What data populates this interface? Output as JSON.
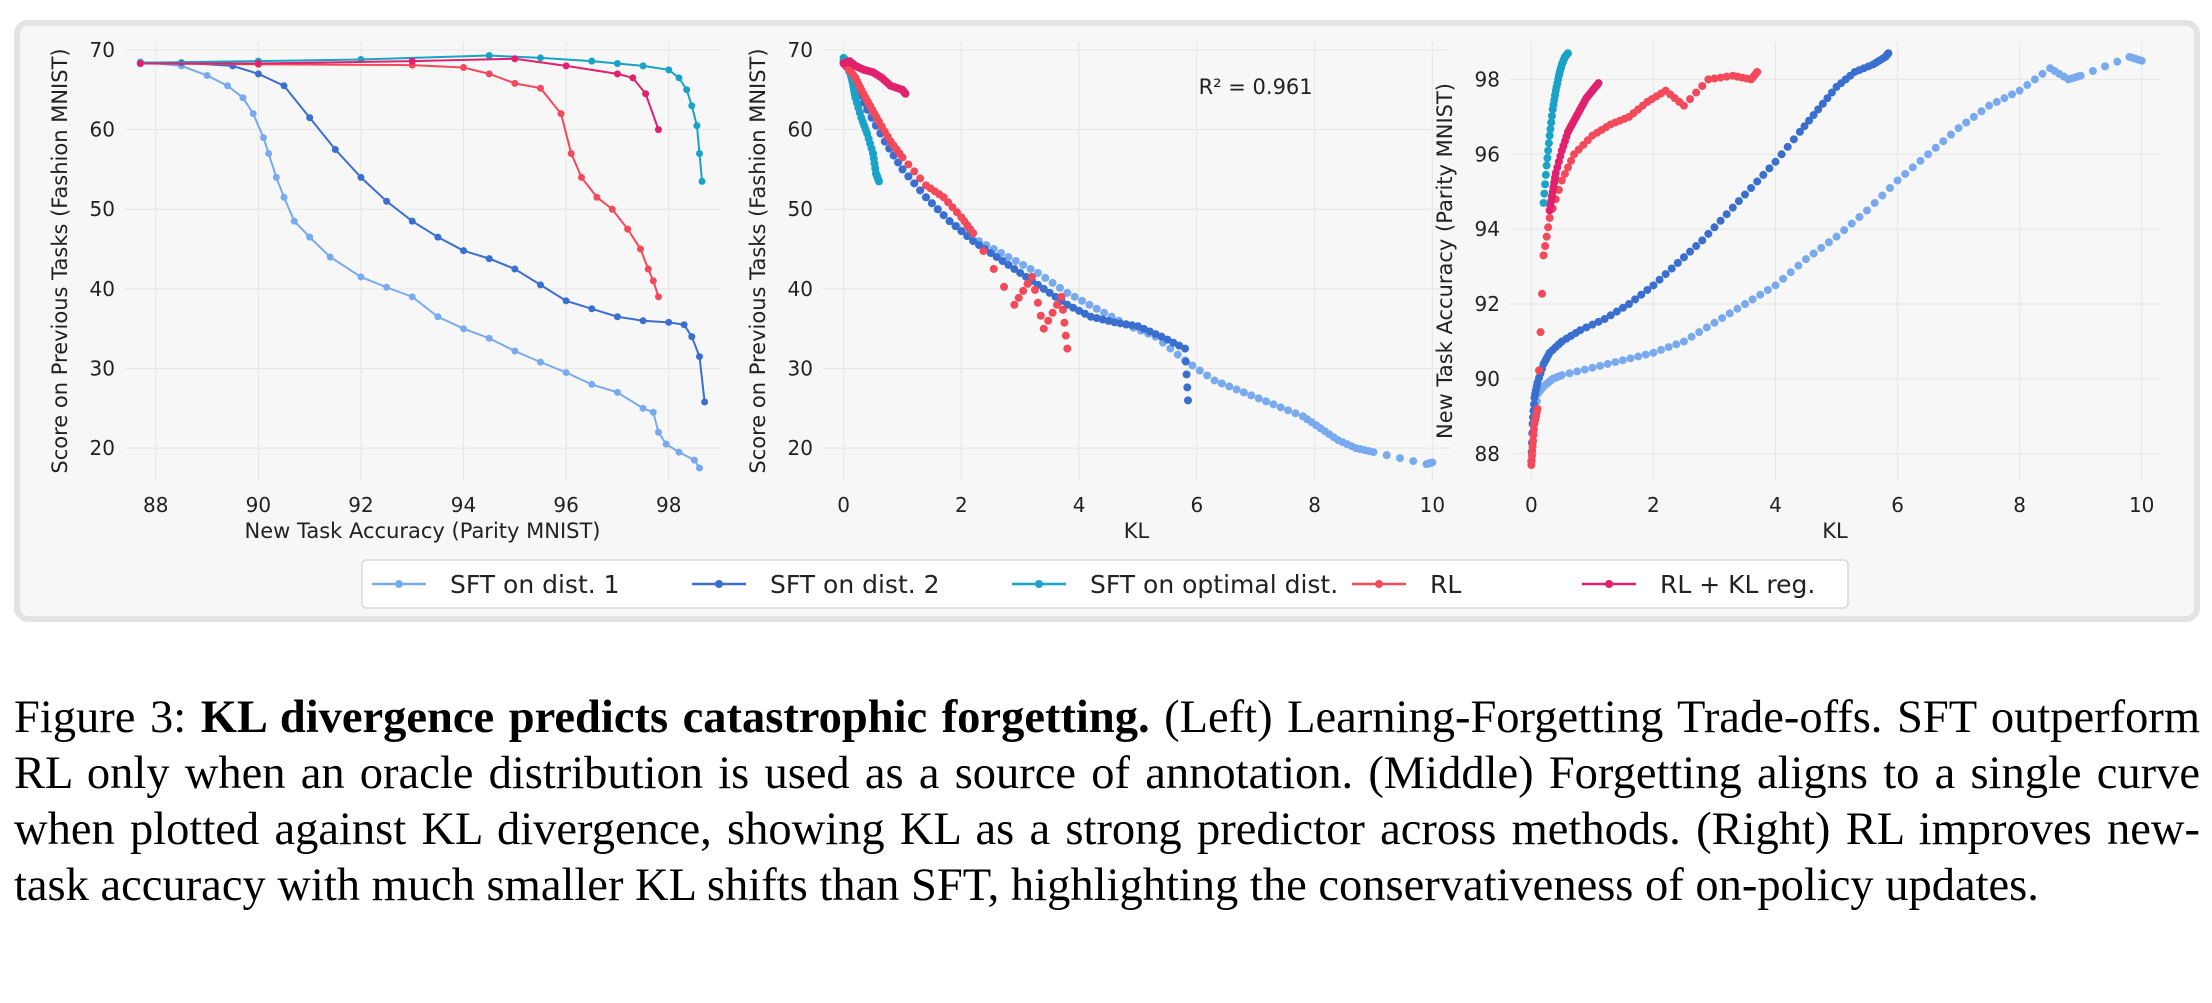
{
  "chart_data": [
    {
      "type": "line",
      "panel": "left",
      "xlabel": "New Task Accuracy (Parity MNIST)",
      "ylabel": "Score on Previous Tasks (Fashion MNIST)",
      "xlim": [
        87.4,
        99.0
      ],
      "ylim": [
        16,
        71
      ],
      "xticks": [
        88,
        90,
        92,
        94,
        96,
        98
      ],
      "yticks": [
        20,
        30,
        40,
        50,
        60,
        70
      ],
      "grid": true,
      "series": [
        {
          "name": "SFT on dist. 1",
          "color": "#7aaaee",
          "x": [
            87.7,
            88.5,
            89.0,
            89.4,
            89.7,
            89.9,
            90.1,
            90.2,
            90.35,
            90.5,
            90.7,
            91.0,
            91.4,
            92.0,
            92.5,
            93.0,
            93.5,
            94.0,
            94.5,
            95.0,
            95.5,
            96.0,
            96.5,
            97.0,
            97.5,
            97.7,
            97.8,
            97.95,
            98.2,
            98.5,
            98.6
          ],
          "y": [
            68.5,
            68.0,
            66.8,
            65.5,
            64.0,
            62.0,
            59.0,
            57.0,
            54.0,
            51.5,
            48.5,
            46.5,
            44.0,
            41.5,
            40.2,
            39.0,
            36.5,
            35.0,
            33.8,
            32.2,
            30.8,
            29.5,
            28.0,
            27.0,
            25.0,
            24.5,
            22.0,
            20.5,
            19.5,
            18.5,
            17.5
          ]
        },
        {
          "name": "SFT on dist. 2",
          "color": "#3a6fd0",
          "x": [
            87.7,
            88.5,
            89.5,
            90.0,
            90.5,
            91.0,
            91.5,
            92.0,
            92.5,
            93.0,
            93.5,
            94.0,
            94.5,
            95.0,
            95.5,
            96.0,
            96.5,
            97.0,
            97.5,
            98.0,
            98.3,
            98.45,
            98.6,
            98.7
          ],
          "y": [
            68.4,
            68.4,
            68.0,
            67.0,
            65.5,
            61.5,
            57.5,
            54.0,
            51.0,
            48.5,
            46.5,
            44.8,
            43.8,
            42.5,
            40.5,
            38.5,
            37.5,
            36.5,
            36.0,
            35.8,
            35.5,
            34.0,
            31.5,
            25.8
          ]
        },
        {
          "name": "SFT on optimal dist.",
          "color": "#1ba2c7",
          "x": [
            87.7,
            90.0,
            92.0,
            94.5,
            95.5,
            96.5,
            97.0,
            97.5,
            98.0,
            98.2,
            98.35,
            98.45,
            98.55,
            98.6,
            98.65
          ],
          "y": [
            68.4,
            68.6,
            68.8,
            69.3,
            69.0,
            68.6,
            68.3,
            68.0,
            67.5,
            66.5,
            65.0,
            63.0,
            60.5,
            57.0,
            53.5
          ]
        },
        {
          "name": "RL",
          "color": "#f24a5a",
          "x": [
            87.7,
            90.0,
            93.0,
            94.0,
            94.5,
            95.0,
            95.5,
            95.9,
            96.1,
            96.3,
            96.6,
            96.9,
            97.2,
            97.45,
            97.6,
            97.7,
            97.8
          ],
          "y": [
            68.3,
            68.2,
            68.1,
            67.8,
            67.0,
            65.8,
            65.2,
            62.0,
            57.0,
            54.0,
            51.5,
            50.0,
            47.5,
            45.0,
            42.5,
            41.0,
            39.0
          ]
        },
        {
          "name": "RL + KL reg.",
          "color": "#e0216e",
          "x": [
            87.7,
            90.0,
            93.0,
            95.0,
            96.0,
            97.0,
            97.3,
            97.55,
            97.8
          ],
          "y": [
            68.3,
            68.3,
            68.6,
            68.9,
            68.0,
            67.0,
            66.5,
            64.5,
            60.0
          ]
        }
      ]
    },
    {
      "type": "scatter",
      "panel": "middle",
      "xlabel": "KL",
      "ylabel": "Score on Previous Tasks (Fashion MNIST)",
      "annotation": "R² = 0.961",
      "xlim": [
        -0.35,
        10.3
      ],
      "ylim": [
        16,
        71
      ],
      "xticks": [
        0,
        2,
        4,
        6,
        8,
        10
      ],
      "yticks": [
        20,
        30,
        40,
        50,
        60,
        70
      ],
      "grid": true,
      "series": [
        {
          "name": "SFT on dist. 1",
          "color": "#7aaaee",
          "x": [
            0.0,
            0.2,
            0.4,
            0.7,
            1.0,
            1.4,
            1.8,
            2.3,
            2.8,
            3.3,
            3.8,
            4.3,
            4.8,
            5.3,
            5.8,
            6.3,
            6.8,
            7.3,
            7.8,
            8.1,
            8.4,
            8.7,
            9.0,
            9.9,
            10.0
          ],
          "y": [
            68.5,
            66.5,
            63.0,
            58.5,
            55.0,
            51.5,
            48.5,
            46.0,
            44.0,
            42.0,
            39.5,
            37.5,
            35.5,
            34.0,
            31.0,
            28.5,
            27.0,
            25.5,
            24.0,
            22.5,
            21.0,
            20.0,
            19.5,
            18.0,
            18.2
          ]
        },
        {
          "name": "SFT on dist. 2",
          "color": "#3a6fd0",
          "x": [
            0.0,
            0.2,
            0.4,
            0.7,
            1.0,
            1.4,
            1.8,
            2.2,
            2.6,
            3.0,
            3.4,
            3.8,
            4.2,
            4.6,
            5.0,
            5.4,
            5.8,
            5.85
          ],
          "y": [
            68.5,
            66.0,
            62.5,
            58.5,
            55.0,
            51.5,
            48.5,
            46.0,
            44.0,
            42.0,
            40.0,
            38.0,
            36.5,
            35.8,
            35.3,
            34.0,
            32.5,
            26.0
          ]
        },
        {
          "name": "SFT on optimal dist.",
          "color": "#1ba2c7",
          "x": [
            0.0,
            0.05,
            0.1,
            0.15,
            0.2,
            0.3,
            0.4,
            0.5,
            0.55,
            0.6
          ],
          "y": [
            69.0,
            68.5,
            67.5,
            66.0,
            64.0,
            61.5,
            59.5,
            57.0,
            54.5,
            53.5
          ]
        },
        {
          "name": "RL",
          "color": "#f24a5a",
          "x": [
            0.0,
            0.1,
            0.2,
            0.3,
            0.45,
            0.6,
            0.8,
            1.0,
            1.4,
            1.7,
            2.0,
            2.2,
            2.9,
            3.2,
            3.4,
            3.7,
            3.8
          ],
          "y": [
            68.3,
            67.5,
            66.5,
            65.0,
            63.0,
            61.0,
            58.5,
            56.5,
            53.0,
            51.5,
            49.0,
            47.0,
            38.0,
            41.5,
            35.0,
            39.0,
            32.5
          ]
        },
        {
          "name": "RL + KL reg.",
          "color": "#e0216e",
          "x": [
            0.0,
            0.1,
            0.2,
            0.35,
            0.5,
            0.65,
            0.8,
            1.0,
            1.05
          ],
          "y": [
            68.3,
            68.6,
            68.0,
            67.5,
            67.2,
            66.5,
            65.5,
            65.0,
            64.5
          ]
        }
      ]
    },
    {
      "type": "scatter",
      "panel": "right",
      "xlabel": "KL",
      "ylabel": "New Task Accuracy (Parity MNIST)",
      "xlim": [
        -0.35,
        10.3
      ],
      "ylim": [
        87.3,
        99.0
      ],
      "xticks": [
        0,
        2,
        4,
        6,
        8,
        10
      ],
      "yticks": [
        88,
        90,
        92,
        94,
        96,
        98
      ],
      "grid": true,
      "series": [
        {
          "name": "SFT on dist. 1",
          "color": "#7aaaee",
          "x": [
            0.0,
            0.05,
            0.1,
            0.2,
            0.35,
            0.5,
            1.0,
            1.5,
            2.0,
            2.5,
            3.0,
            3.5,
            4.0,
            4.5,
            5.0,
            5.5,
            6.0,
            6.5,
            7.0,
            7.5,
            8.0,
            8.5,
            8.8,
            9.0,
            9.8,
            10.0
          ],
          "y": [
            87.8,
            88.8,
            89.6,
            89.8,
            90.0,
            90.1,
            90.3,
            90.5,
            90.7,
            91.0,
            91.5,
            92.0,
            92.5,
            93.2,
            93.8,
            94.5,
            95.3,
            96.0,
            96.7,
            97.3,
            97.7,
            98.3,
            98.0,
            98.1,
            98.6,
            98.5
          ]
        },
        {
          "name": "SFT on dist. 2",
          "color": "#3a6fd0",
          "x": [
            0.0,
            0.02,
            0.05,
            0.1,
            0.2,
            0.3,
            0.5,
            0.8,
            1.2,
            1.6,
            2.0,
            2.4,
            2.8,
            3.2,
            3.6,
            4.0,
            4.4,
            4.7,
            5.0,
            5.3,
            5.6,
            5.8,
            5.85
          ],
          "y": [
            87.8,
            88.8,
            89.5,
            89.9,
            90.4,
            90.7,
            91.0,
            91.3,
            91.6,
            92.0,
            92.5,
            93.1,
            93.7,
            94.4,
            95.1,
            95.8,
            96.6,
            97.2,
            97.8,
            98.2,
            98.4,
            98.6,
            98.7
          ]
        },
        {
          "name": "SFT on optimal dist.",
          "color": "#1ba2c7",
          "x": [
            0.2,
            0.25,
            0.3,
            0.35,
            0.4,
            0.45,
            0.5,
            0.55,
            0.6
          ],
          "y": [
            94.7,
            95.7,
            96.5,
            97.2,
            97.7,
            98.1,
            98.4,
            98.6,
            98.7
          ]
        },
        {
          "name": "RL",
          "color": "#f24a5a",
          "x": [
            0.0,
            0.02,
            0.05,
            0.1,
            0.2,
            0.3,
            0.5,
            0.7,
            1.0,
            1.3,
            1.6,
            1.9,
            2.2,
            2.5,
            2.9,
            3.3,
            3.6,
            3.7
          ],
          "y": [
            87.7,
            88.2,
            88.8,
            89.2,
            93.3,
            94.3,
            95.3,
            96.0,
            96.5,
            96.8,
            97.0,
            97.4,
            97.7,
            97.3,
            98.0,
            98.1,
            98.0,
            98.2
          ]
        },
        {
          "name": "RL + KL reg.",
          "color": "#e0216e",
          "x": [
            0.3,
            0.35,
            0.4,
            0.5,
            0.6,
            0.7,
            0.8,
            0.9,
            1.0,
            1.1
          ],
          "y": [
            94.5,
            95.0,
            95.5,
            96.1,
            96.6,
            96.9,
            97.2,
            97.5,
            97.7,
            97.9
          ]
        }
      ]
    }
  ],
  "legend": {
    "placement": "bottom-center",
    "items": [
      {
        "label": "SFT on dist. 1",
        "color": "#7aaaee"
      },
      {
        "label": "SFT on dist. 2",
        "color": "#3a6fd0"
      },
      {
        "label": "SFT on optimal dist.",
        "color": "#1ba2c7"
      },
      {
        "label": "RL",
        "color": "#f24a5a"
      },
      {
        "label": "RL + KL reg.",
        "color": "#e0216e"
      }
    ]
  },
  "caption": {
    "label": "Figure 3: ",
    "bold": "KL divergence predicts catastrophic forgetting.",
    "text": " (Left) Learning-Forgetting Trade-offs. SFT outperform RL only when an oracle distribution is used as a source of annotation. (Middle) Forgetting aligns to a single curve when plotted against KL divergence, showing KL as a strong predictor across methods. (Right) RL improves new-task accuracy with much smaller KL shifts than SFT, highlighting the conservativeness of on-policy updates."
  }
}
